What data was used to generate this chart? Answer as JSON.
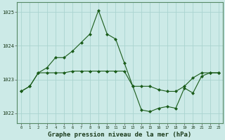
{
  "xlabel_label": "Graphe pression niveau de la mer (hPa)",
  "background_color": "#cceae7",
  "grid_color": "#aad4d0",
  "line_color": "#1a5c1a",
  "xmin": 0,
  "xmax": 23,
  "ymin": 1021.7,
  "ymax": 1025.3,
  "yticks": [
    1022,
    1023,
    1024,
    1025
  ],
  "xticks": [
    0,
    1,
    2,
    3,
    4,
    5,
    6,
    7,
    8,
    9,
    10,
    11,
    12,
    13,
    14,
    15,
    16,
    17,
    18,
    19,
    20,
    21,
    22,
    23
  ],
  "line1_x": [
    0,
    1,
    2,
    3,
    4,
    5,
    6,
    7,
    8,
    9,
    10,
    11,
    12,
    13,
    14,
    15,
    16,
    17,
    18,
    19,
    20,
    21,
    22,
    23
  ],
  "line1_y": [
    1022.65,
    1022.8,
    1023.2,
    1023.35,
    1023.65,
    1023.65,
    1023.85,
    1024.1,
    1024.35,
    1025.05,
    1024.35,
    1024.2,
    1023.5,
    1022.8,
    1022.1,
    1022.05,
    1022.15,
    1022.2,
    1022.15,
    1022.75,
    1022.6,
    1023.1,
    1023.2,
    1023.2
  ],
  "line2_x": [
    0,
    1,
    2,
    3,
    4,
    5,
    6,
    7,
    8,
    9,
    10,
    11,
    12,
    13,
    14,
    15,
    16,
    17,
    18,
    19,
    20,
    21,
    22,
    23
  ],
  "line2_y": [
    1022.65,
    1022.8,
    1023.2,
    1023.2,
    1023.2,
    1023.2,
    1023.25,
    1023.25,
    1023.25,
    1023.25,
    1023.25,
    1023.25,
    1023.25,
    1022.8,
    1022.8,
    1022.8,
    1022.7,
    1022.65,
    1022.65,
    1022.8,
    1023.05,
    1023.2,
    1023.2,
    1023.2
  ]
}
